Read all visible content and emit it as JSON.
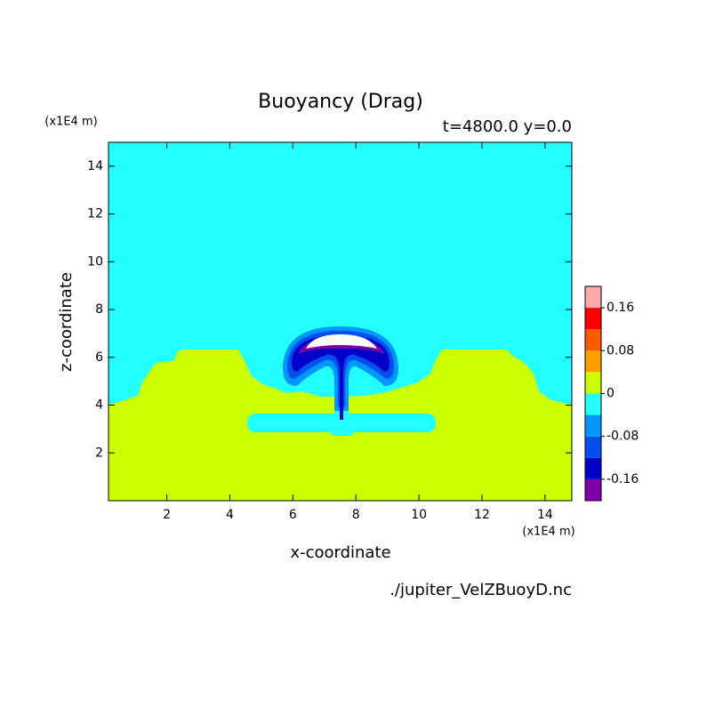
{
  "chart_data": {
    "type": "contour",
    "title": "Buoyancy (Drag)",
    "subtitle": "t=4800.0 y=0.0",
    "x_label": "x-coordinate",
    "y_label": "z-coordinate",
    "x_unit": "(x1E4 m)",
    "y_unit": "(x1E4 m)",
    "source": "./jupiter_VelZBuoyD.nc",
    "xlim": [
      0.15,
      14.85
    ],
    "xticks": [
      2,
      4,
      6,
      8,
      10,
      12,
      14
    ],
    "ylim": [
      0,
      15
    ],
    "yticks": [
      2,
      4,
      6,
      8,
      10,
      12,
      14
    ],
    "colorbar": {
      "levels": [
        -0.2,
        -0.16,
        -0.12,
        -0.08,
        -0.04,
        0,
        0.04,
        0.08,
        0.12,
        0.16,
        0.2
      ],
      "colors": [
        "#8000a8",
        "#0000c8",
        "#0050f0",
        "#0096ff",
        "#22ffff",
        "#ccff00",
        "#ffa000",
        "#ff5a00",
        "#ff0000",
        "#ffaaaa"
      ],
      "ticks": [
        -0.16,
        -0.08,
        0,
        0.08,
        0.16
      ]
    }
  }
}
